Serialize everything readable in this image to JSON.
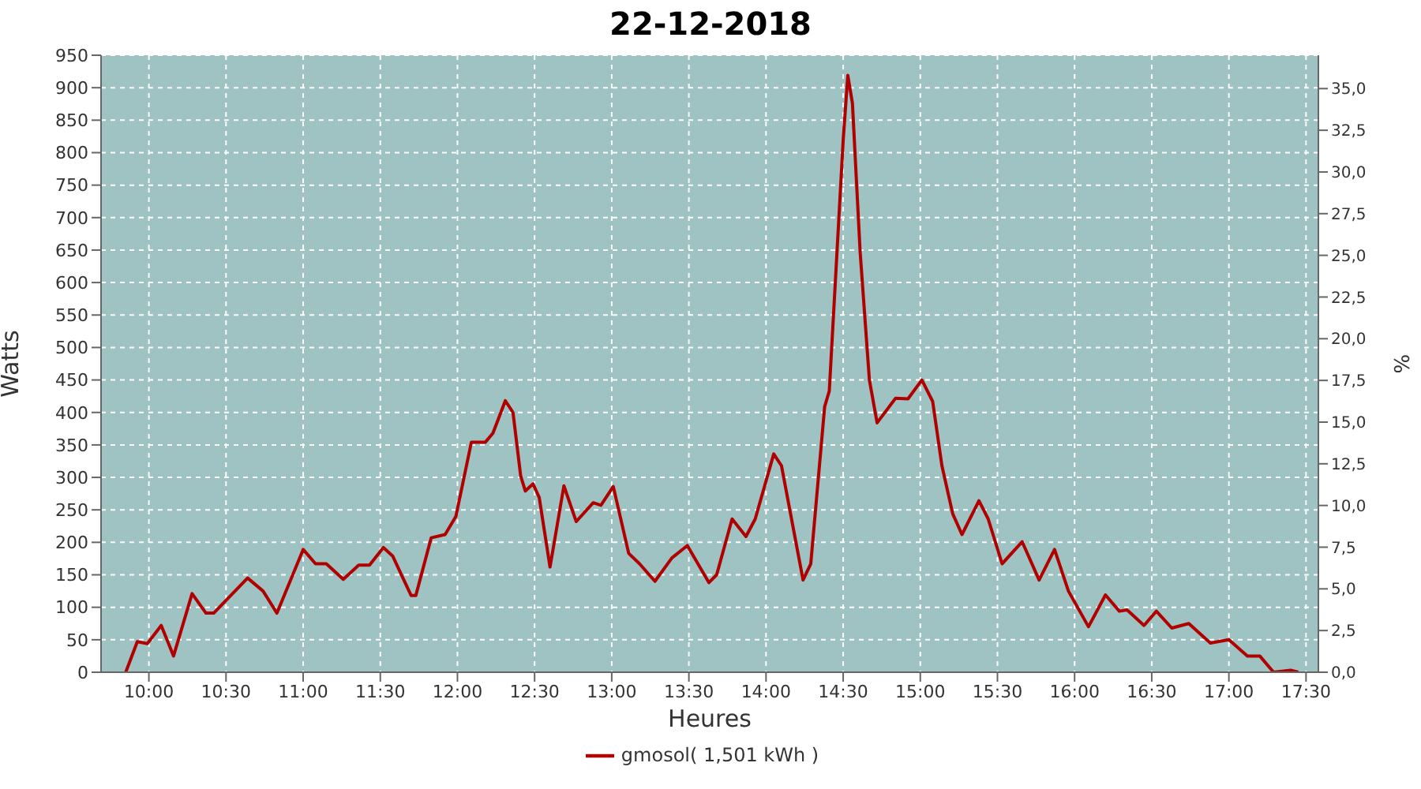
{
  "chart_data": {
    "type": "line",
    "title": "22-12-2018",
    "xlabel": "Heures",
    "ylabel": "Watts",
    "y2label": "%",
    "x": [
      9.85,
      9.925,
      9.99,
      10.08,
      10.16,
      10.28,
      10.37,
      10.42,
      10.64,
      10.74,
      10.83,
      11.0,
      11.08,
      11.15,
      11.26,
      11.36,
      11.43,
      11.52,
      11.58,
      11.7,
      11.73,
      11.83,
      11.92,
      11.99,
      12.09,
      12.18,
      12.23,
      12.31,
      12.36,
      12.41,
      12.44,
      12.49,
      12.53,
      12.6,
      12.69,
      12.77,
      12.88,
      12.93,
      13.01,
      13.11,
      13.18,
      13.28,
      13.39,
      13.49,
      13.63,
      13.68,
      13.78,
      13.87,
      13.93,
      14.05,
      14.1,
      14.24,
      14.29,
      14.38,
      14.41,
      14.46,
      14.5,
      14.53,
      14.56,
      14.61,
      14.67,
      14.72,
      14.84,
      14.92,
      15.01,
      15.08,
      15.14,
      15.21,
      15.27,
      15.38,
      15.44,
      15.53,
      15.66,
      15.77,
      15.87,
      15.96,
      16.09,
      16.2,
      16.29,
      16.34,
      16.45,
      16.53,
      16.63,
      16.74,
      16.88,
      17.0,
      17.12,
      17.2,
      17.29,
      17.4,
      17.45
    ],
    "series": [
      {
        "name": "gmosol( 1,501 kWh )",
        "color": "#b00000",
        "values": [
          0,
          47,
          44,
          72,
          25,
          121,
          91,
          91,
          145,
          125,
          91,
          189,
          167,
          167,
          143,
          165,
          165,
          192,
          179,
          118,
          118,
          207,
          212,
          240,
          354,
          354,
          368,
          418,
          400,
          302,
          279,
          290,
          269,
          162,
          287,
          232,
          261,
          257,
          286,
          183,
          167,
          140,
          176,
          195,
          138,
          150,
          236,
          209,
          236,
          336,
          318,
          142,
          167,
          409,
          433,
          647,
          819,
          919,
          876,
          647,
          450,
          384,
          422,
          421,
          450,
          417,
          318,
          244,
          212,
          264,
          236,
          167,
          201,
          142,
          189,
          125,
          70,
          119,
          94,
          96,
          72,
          94,
          68,
          75,
          45,
          50,
          25,
          25,
          0,
          3,
          0
        ]
      }
    ],
    "xlim": [
      9.69,
      17.58
    ],
    "xticks": [
      {
        "value": 10,
        "label": "10:00"
      },
      {
        "value": 10.5,
        "label": "10:30"
      },
      {
        "value": 11,
        "label": "11:00"
      },
      {
        "value": 11.5,
        "label": "11:30"
      },
      {
        "value": 12,
        "label": "12:00"
      },
      {
        "value": 12.5,
        "label": "12:30"
      },
      {
        "value": 13,
        "label": "13:00"
      },
      {
        "value": 13.5,
        "label": "13:30"
      },
      {
        "value": 14,
        "label": "14:00"
      },
      {
        "value": 14.5,
        "label": "14:30"
      },
      {
        "value": 15,
        "label": "15:00"
      },
      {
        "value": 15.5,
        "label": "15:30"
      },
      {
        "value": 16,
        "label": "16:00"
      },
      {
        "value": 16.5,
        "label": "16:30"
      },
      {
        "value": 17,
        "label": "17:00"
      },
      {
        "value": 17.5,
        "label": "17:30"
      }
    ],
    "ylim": [
      0,
      950
    ],
    "yticks": [
      0,
      50,
      100,
      150,
      200,
      250,
      300,
      350,
      400,
      450,
      500,
      550,
      600,
      650,
      700,
      750,
      800,
      850,
      900,
      950
    ],
    "y2lim": [
      0,
      37.0
    ],
    "y2ticks": [
      {
        "value": 0,
        "label": "0,0"
      },
      {
        "value": 2.5,
        "label": "2,5"
      },
      {
        "value": 5,
        "label": "5,0"
      },
      {
        "value": 7.5,
        "label": "7,5"
      },
      {
        "value": 10,
        "label": "10,0"
      },
      {
        "value": 12.5,
        "label": "12,5"
      },
      {
        "value": 15,
        "label": "15,0"
      },
      {
        "value": 17.5,
        "label": "17,5"
      },
      {
        "value": 20,
        "label": "20,0"
      },
      {
        "value": 22.5,
        "label": "22,5"
      },
      {
        "value": 25,
        "label": "25,0"
      },
      {
        "value": 27.5,
        "label": "27,5"
      },
      {
        "value": 30,
        "label": "30,0"
      },
      {
        "value": 32.5,
        "label": "32,5"
      },
      {
        "value": 35,
        "label": "35,0"
      }
    ],
    "grid": true,
    "legend": "bottom",
    "marker": "none",
    "line_style": "solid"
  }
}
